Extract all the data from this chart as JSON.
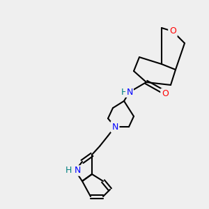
{
  "bg_color": "#efefef",
  "bond_color": "#000000",
  "bond_width": 1.5,
  "atom_colors": {
    "O": "#ff0000",
    "N": "#0000ff",
    "NH": "#008080",
    "H": "#008080"
  },
  "font_size": 9,
  "fig_size": [
    3.0,
    3.0
  ],
  "dpi": 100
}
